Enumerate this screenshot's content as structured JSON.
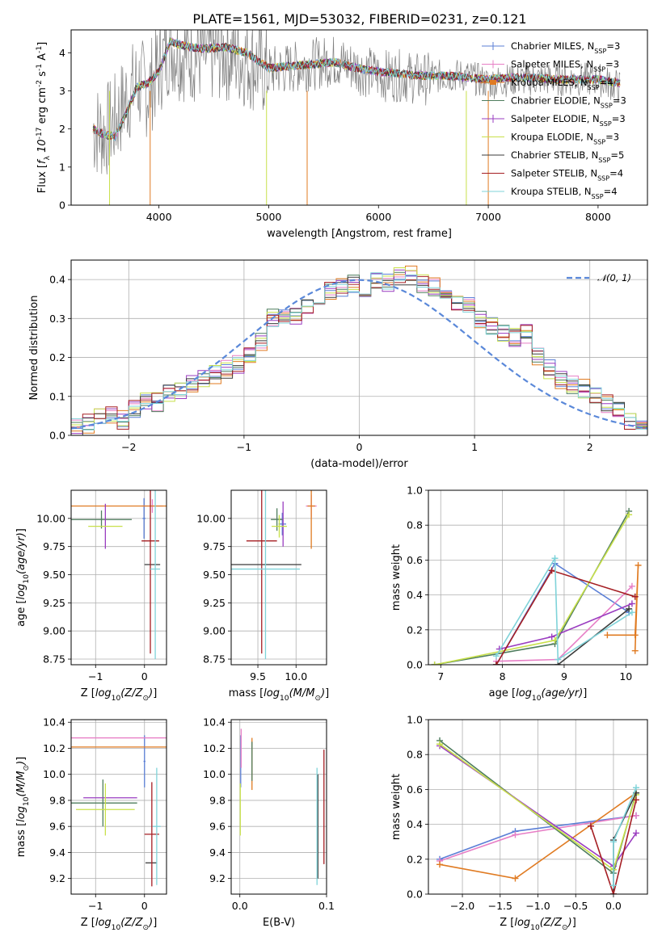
{
  "figure": {
    "title": "PLATE=1561, MJD=53032, FIBERID=0231, z=0.121"
  },
  "series_styles": [
    {
      "name": "Chabrier MILES, N$_{SSP}$=3",
      "color": "#5b7fd6"
    },
    {
      "name": "Salpeter MILES, N$_{SSP}$=3",
      "color": "#e77fc6"
    },
    {
      "name": "Kroupa MILES, N$_{SSP}$=4",
      "color": "#e07b22"
    },
    {
      "name": "Chabrier ELODIE, N$_{SSP}$=3",
      "color": "#4f7d5e"
    },
    {
      "name": "Salpeter ELODIE, N$_{SSP}$=3",
      "color": "#9a3cc0"
    },
    {
      "name": "Kroupa ELODIE, N$_{SSP}$=3",
      "color": "#c8e04a"
    },
    {
      "name": "Chabrier STELIB, N$_{SSP}$=5",
      "color": "#3b3b3b"
    },
    {
      "name": "Salpeter STELIB, N$_{SSP}$=4",
      "color": "#a51e23"
    },
    {
      "name": "Kroupa STELIB, N$_{SSP}$=4",
      "color": "#7fd3d9"
    }
  ],
  "chart_data": [
    {
      "id": "spectrum",
      "type": "line",
      "xlabel": "wavelength [Angstrom, rest frame]",
      "ylabel": "Flux [$f_\\lambda 10^{-17}$ erg cm$^{-2}$ s$^{-1}$ A$^{-1}$]",
      "xlim": [
        3200,
        8450
      ],
      "ylim": [
        0,
        4.6
      ],
      "xticks": [
        4000,
        5000,
        6000,
        7000,
        8000
      ],
      "yticks": [
        0,
        1,
        2,
        3,
        4
      ],
      "data_color": "#808080",
      "data_points": [
        [
          3400,
          2.0
        ],
        [
          3500,
          1.9
        ],
        [
          3600,
          2.2
        ],
        [
          3700,
          2.8
        ],
        [
          3800,
          3.2
        ],
        [
          3900,
          3.0
        ],
        [
          4000,
          3.6
        ],
        [
          4100,
          4.2
        ],
        [
          4200,
          4.0
        ],
        [
          4400,
          3.9
        ],
        [
          4600,
          4.0
        ],
        [
          4800,
          3.8
        ],
        [
          5000,
          3.5
        ],
        [
          5200,
          3.6
        ],
        [
          5400,
          3.7
        ],
        [
          5600,
          3.8
        ],
        [
          5800,
          3.6
        ],
        [
          6000,
          3.4
        ],
        [
          6200,
          3.4
        ],
        [
          6400,
          3.3
        ],
        [
          6600,
          3.4
        ],
        [
          6800,
          3.4
        ],
        [
          7000,
          3.2
        ],
        [
          7200,
          3.3
        ],
        [
          7400,
          3.3
        ],
        [
          7600,
          3.3
        ],
        [
          7800,
          3.3
        ],
        [
          8000,
          3.3
        ],
        [
          8200,
          3.1
        ]
      ],
      "model_points": [
        [
          3400,
          2.0
        ],
        [
          3500,
          1.85
        ],
        [
          3600,
          1.8
        ],
        [
          3700,
          2.4
        ],
        [
          3800,
          3.1
        ],
        [
          3900,
          3.2
        ],
        [
          4000,
          3.5
        ],
        [
          4100,
          4.3
        ],
        [
          4200,
          4.2
        ],
        [
          4400,
          4.1
        ],
        [
          4600,
          4.15
        ],
        [
          4800,
          4.0
        ],
        [
          5000,
          3.6
        ],
        [
          5200,
          3.65
        ],
        [
          5400,
          3.7
        ],
        [
          5600,
          3.75
        ],
        [
          5800,
          3.6
        ],
        [
          6000,
          3.5
        ],
        [
          6200,
          3.45
        ],
        [
          6400,
          3.4
        ],
        [
          6600,
          3.4
        ],
        [
          6800,
          3.35
        ],
        [
          7000,
          3.3
        ],
        [
          7200,
          3.35
        ],
        [
          7400,
          3.35
        ],
        [
          7600,
          3.3
        ],
        [
          7800,
          3.3
        ],
        [
          8000,
          3.3
        ],
        [
          8200,
          3.2
        ]
      ],
      "dips": [
        [
          3550,
          0
        ],
        [
          3920,
          0
        ],
        [
          4980,
          0
        ],
        [
          5350,
          0
        ],
        [
          6800,
          0
        ],
        [
          7000,
          0
        ]
      ],
      "legend_position": "upper right"
    },
    {
      "id": "residual_hist",
      "type": "histogram",
      "xlabel": "(data-model)/error",
      "ylabel": "Normed distribution",
      "xlim": [
        -2.5,
        2.5
      ],
      "ylim": [
        0,
        0.45
      ],
      "xticks": [
        -2,
        -1,
        0,
        1,
        2
      ],
      "yticks": [
        0.0,
        0.1,
        0.2,
        0.3,
        0.4
      ],
      "bin_edges_start": -2.5,
      "bin_width": 0.1,
      "base_values": [
        0.02,
        0.03,
        0.045,
        0.05,
        0.04,
        0.07,
        0.09,
        0.085,
        0.11,
        0.11,
        0.13,
        0.15,
        0.155,
        0.17,
        0.18,
        0.2,
        0.24,
        0.3,
        0.31,
        0.31,
        0.33,
        0.34,
        0.37,
        0.38,
        0.39,
        0.38,
        0.4,
        0.39,
        0.41,
        0.41,
        0.39,
        0.38,
        0.37,
        0.34,
        0.33,
        0.3,
        0.28,
        0.26,
        0.25,
        0.26,
        0.2,
        0.17,
        0.14,
        0.13,
        0.12,
        0.1,
        0.08,
        0.07,
        0.04,
        0.02
      ],
      "reference_curve": {
        "label": "$\\mathcal{N}(0, 1)$",
        "color": "#5a88d9"
      },
      "legend_position": "upper right"
    },
    {
      "id": "age_vs_Z",
      "type": "errorbar",
      "xlabel": "Z [$\\log_{10}(Z/Z_\\odot)$]",
      "ylabel": "age  [$\\log_{10}(age/yr)$]",
      "xlim": [
        -1.5,
        0.45
      ],
      "ylim": [
        8.7,
        10.25
      ],
      "xticks": [
        -1,
        0
      ],
      "yticks": [
        8.75,
        9.0,
        9.25,
        9.5,
        9.75,
        10.0
      ],
      "points": [
        {
          "s": 0,
          "x": -0.01,
          "y": 10.0,
          "xerr": 0.03,
          "yerr": 0.18
        },
        {
          "s": 1,
          "x": 0.16,
          "y": 10.11,
          "xerr": 0.22,
          "yerr": 0.06
        },
        {
          "s": 2,
          "x": -0.47,
          "y": 10.11,
          "xerr": 1.35,
          "yerr": 0.0
        },
        {
          "s": 3,
          "x": -0.88,
          "y": 9.99,
          "xerr": 0.62,
          "yerr": 0.08
        },
        {
          "s": 4,
          "x": -0.8,
          "y": 9.93,
          "xerr": 0.0,
          "yerr": 0.2
        },
        {
          "s": 5,
          "x": -0.8,
          "y": 9.93,
          "xerr": 0.35,
          "yerr": 0.0
        },
        {
          "s": 6,
          "x": 0.16,
          "y": 9.59,
          "xerr": 0.16,
          "yerr": 0.0
        },
        {
          "s": 7,
          "x": 0.12,
          "y": 9.8,
          "xerr": 0.18,
          "yerr": 1.0
        },
        {
          "s": 8,
          "x": 0.22,
          "y": 9.55,
          "xerr": 0.1,
          "yerr": 0.8
        }
      ]
    },
    {
      "id": "age_vs_mass",
      "type": "errorbar",
      "xlabel": "mass [$\\log_{10}(M/M_\\odot)$]",
      "ylabel": "",
      "xlim": [
        9.15,
        10.4
      ],
      "ylim": [
        8.7,
        10.25
      ],
      "xticks": [
        9.5,
        10.0
      ],
      "yticks": [
        8.75,
        9.0,
        9.25,
        9.5,
        9.75,
        10.0
      ],
      "points": [
        {
          "s": 0,
          "x": 9.82,
          "y": 9.95,
          "xerr": 0.05,
          "yerr": 0.1
        },
        {
          "s": 1,
          "x": 10.2,
          "y": 10.11,
          "xerr": 0.07,
          "yerr": 0.1
        },
        {
          "s": 2,
          "x": 10.2,
          "y": 10.11,
          "xerr": 0.05,
          "yerr": 0.38
        },
        {
          "s": 3,
          "x": 9.75,
          "y": 9.99,
          "xerr": 0.08,
          "yerr": 0.1
        },
        {
          "s": 4,
          "x": 9.83,
          "y": 9.95,
          "xerr": 0.0,
          "yerr": 0.2
        },
        {
          "s": 5,
          "x": 9.78,
          "y": 9.93,
          "xerr": 0.1,
          "yerr": 0.1
        },
        {
          "s": 6,
          "x": 9.57,
          "y": 9.59,
          "xerr": 0.5,
          "yerr": 0.0
        },
        {
          "s": 7,
          "x": 9.55,
          "y": 9.8,
          "xerr": 0.2,
          "yerr": 1.0
        },
        {
          "s": 8,
          "x": 9.6,
          "y": 9.55,
          "xerr": 0.45,
          "yerr": 0.8
        }
      ]
    },
    {
      "id": "weight_vs_age",
      "type": "line",
      "xlabel": "age  [$\\log_{10}(age/yr)$]",
      "ylabel": "mass weight",
      "xlim": [
        6.8,
        10.35
      ],
      "ylim": [
        0,
        1.0
      ],
      "xticks": [
        7,
        8,
        9,
        10
      ],
      "yticks": [
        0.0,
        0.2,
        0.4,
        0.6,
        0.8,
        1.0
      ],
      "series": [
        {
          "s": 0,
          "x": [
            7.9,
            8.85,
            10.05
          ],
          "y": [
            0.0,
            0.58,
            0.3
          ]
        },
        {
          "s": 1,
          "x": [
            7.9,
            8.9,
            10.1
          ],
          "y": [
            0.02,
            0.03,
            0.45
          ]
        },
        {
          "s": 2,
          "x": [
            9.7,
            10.15,
            10.2,
            10.15
          ],
          "y": [
            0.17,
            0.17,
            0.57,
            0.08
          ]
        },
        {
          "s": 3,
          "x": [
            6.9,
            8.85,
            10.05
          ],
          "y": [
            0.0,
            0.12,
            0.88
          ]
        },
        {
          "s": 4,
          "x": [
            7.95,
            8.8,
            10.1
          ],
          "y": [
            0.09,
            0.16,
            0.35
          ]
        },
        {
          "s": 5,
          "x": [
            6.9,
            8.85,
            10.05
          ],
          "y": [
            0.0,
            0.14,
            0.86
          ]
        },
        {
          "s": 6,
          "x": [
            7.9,
            8.9,
            10.05
          ],
          "y": [
            0.0,
            0.0,
            0.32
          ]
        },
        {
          "s": 7,
          "x": [
            7.9,
            8.8,
            10.15
          ],
          "y": [
            0.0,
            0.54,
            0.39
          ]
        },
        {
          "s": 8,
          "x": [
            7.9,
            8.85,
            8.9,
            10.1
          ],
          "y": [
            0.05,
            0.61,
            0.03,
            0.3
          ]
        }
      ]
    },
    {
      "id": "mass_vs_Z",
      "type": "errorbar",
      "xlabel": "Z [$\\log_{10}(Z/Z_\\odot)$]",
      "ylabel": "mass [$\\log_{10}(M/M_\\odot)$]",
      "xlim": [
        -1.5,
        0.45
      ],
      "ylim": [
        9.08,
        10.42
      ],
      "xticks": [
        -1,
        0
      ],
      "yticks": [
        9.2,
        9.4,
        9.6,
        9.8,
        10.0,
        10.2,
        10.4
      ],
      "points": [
        {
          "s": 0,
          "x": 0.0,
          "y": 10.1,
          "xerr": 0.02,
          "yerr": 0.2
        },
        {
          "s": 1,
          "x": -0.47,
          "y": 10.28,
          "xerr": 1.35,
          "yerr": 0.0
        },
        {
          "s": 2,
          "x": -0.4,
          "y": 10.21,
          "xerr": 1.2,
          "yerr": 0.0
        },
        {
          "s": 3,
          "x": -0.85,
          "y": 9.78,
          "xerr": 0.7,
          "yerr": 0.18
        },
        {
          "s": 4,
          "x": -0.7,
          "y": 9.82,
          "xerr": 0.55,
          "yerr": 0.0
        },
        {
          "s": 5,
          "x": -0.8,
          "y": 9.73,
          "xerr": 0.6,
          "yerr": 0.2
        },
        {
          "s": 6,
          "x": 0.14,
          "y": 9.32,
          "xerr": 0.12,
          "yerr": 0.0
        },
        {
          "s": 7,
          "x": 0.15,
          "y": 9.54,
          "xerr": 0.15,
          "yerr": 0.4
        },
        {
          "s": 8,
          "x": 0.25,
          "y": 9.6,
          "xerr": 0.08,
          "yerr": 0.45
        }
      ]
    },
    {
      "id": "mass_vs_EBV",
      "type": "errorbar",
      "xlabel": "E(B-V)",
      "ylabel": "",
      "xlim": [
        -0.01,
        0.1
      ],
      "ylim": [
        9.08,
        10.42
      ],
      "xticks": [
        0.0,
        0.1
      ],
      "yticks": [
        9.2,
        9.4,
        9.6,
        9.8,
        10.0,
        10.2,
        10.4
      ],
      "points": [
        {
          "s": 0,
          "x": 0.001,
          "y": 10.1,
          "xerr": 0,
          "yerr": 0.2
        },
        {
          "s": 1,
          "x": 0.0015,
          "y": 10.2,
          "xerr": 0,
          "yerr": 0.15
        },
        {
          "s": 2,
          "x": 0.014,
          "y": 10.08,
          "xerr": 0,
          "yerr": 0.2
        },
        {
          "s": 3,
          "x": 0.014,
          "y": 10.1,
          "xerr": 0,
          "yerr": 0.15
        },
        {
          "s": 5,
          "x": 0.0005,
          "y": 9.73,
          "xerr": 0,
          "yerr": 0.2
        },
        {
          "s": 6,
          "x": 0.09,
          "y": 9.6,
          "xerr": 0,
          "yerr": 0.4
        },
        {
          "s": 7,
          "x": 0.097,
          "y": 9.75,
          "xerr": 0,
          "yerr": 0.44
        },
        {
          "s": 8,
          "x": 0.089,
          "y": 9.6,
          "xerr": 0,
          "yerr": 0.45
        }
      ]
    },
    {
      "id": "weight_vs_Z",
      "type": "line",
      "xlabel": "Z [$\\log_{10}(Z/Z_\\odot)$]",
      "ylabel": "mass weight",
      "xlim": [
        -2.45,
        0.45
      ],
      "ylim": [
        0,
        1.0
      ],
      "xticks": [
        -2.0,
        -1.5,
        -1.0,
        -0.5,
        0.0
      ],
      "yticks": [
        0.0,
        0.2,
        0.4,
        0.6,
        0.8,
        1.0
      ],
      "series": [
        {
          "s": 0,
          "x": [
            -2.3,
            -1.3,
            0.3
          ],
          "y": [
            0.2,
            0.36,
            0.45
          ]
        },
        {
          "s": 1,
          "x": [
            -2.3,
            -1.3,
            0.3
          ],
          "y": [
            0.19,
            0.34,
            0.45
          ]
        },
        {
          "s": 2,
          "x": [
            -2.3,
            -1.3,
            0.3
          ],
          "y": [
            0.17,
            0.09,
            0.58
          ]
        },
        {
          "s": 3,
          "x": [
            -2.3,
            0.0,
            0.3
          ],
          "y": [
            0.88,
            0.12,
            0.58
          ]
        },
        {
          "s": 4,
          "x": [
            -2.3,
            0.0,
            0.3
          ],
          "y": [
            0.85,
            0.16,
            0.35
          ]
        },
        {
          "s": 5,
          "x": [
            -2.3,
            0.0,
            0.3
          ],
          "y": [
            0.86,
            0.14,
            0.57
          ]
        },
        {
          "s": 6,
          "x": [
            0.0,
            0.0,
            0.3
          ],
          "y": [
            0.0,
            0.31,
            0.58
          ]
        },
        {
          "s": 7,
          "x": [
            -0.3,
            0.0,
            0.3
          ],
          "y": [
            0.39,
            0.0,
            0.54
          ]
        },
        {
          "s": 8,
          "x": [
            0.0,
            0.0,
            0.3
          ],
          "y": [
            0.05,
            0.3,
            0.61
          ]
        }
      ]
    }
  ]
}
